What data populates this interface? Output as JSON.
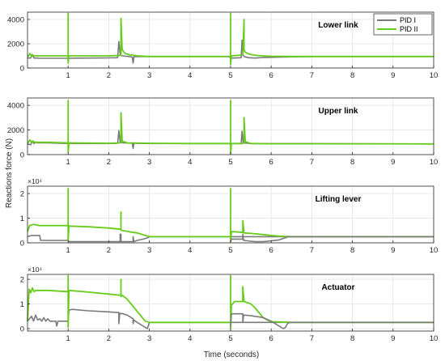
{
  "chart_data": {
    "type": "line",
    "ylabel": "Reactions force (N)",
    "xlabel": "Time (seconds)",
    "xlim": [
      0,
      10
    ],
    "xticks": [
      1,
      2,
      3,
      4,
      5,
      6,
      7,
      8,
      9,
      10
    ],
    "grid": true,
    "legend": {
      "placement": "top-right",
      "entries": [
        {
          "label": "PID I",
          "color": "#7a7a7a"
        },
        {
          "label": "PID II",
          "color": "#66cc1a"
        }
      ]
    },
    "panels": [
      {
        "title": "Lower link",
        "exponent": "",
        "ylim": [
          0,
          4600
        ],
        "yticks": [
          0,
          2000,
          4000
        ],
        "ytick_labels": [
          "0",
          "2000",
          "4000"
        ],
        "series": [
          {
            "name": "PID I",
            "x": [
              0,
              0.08,
              0.12,
              0.16,
              0.22,
              0.3,
              1.0,
              1.2,
              2.0,
              2.22,
              2.25,
              2.28,
              2.33,
              2.5,
              2.58,
              2.6,
              2.62,
              2.65,
              2.75,
              2.9,
              3.0,
              4.0,
              4.97,
              5.0,
              5.05,
              5.2,
              5.26,
              5.28,
              5.31,
              5.35,
              5.45,
              5.6,
              5.8,
              6.0,
              6.3,
              7.0,
              10.0
            ],
            "y": [
              820,
              820,
              1100,
              820,
              820,
              800,
              800,
              810,
              830,
              850,
              2200,
              1100,
              1000,
              950,
              900,
              400,
              920,
              930,
              940,
              950,
              950,
              950,
              950,
              800,
              820,
              840,
              850,
              2300,
              1000,
              920,
              850,
              820,
              860,
              880,
              900,
              950,
              950
            ]
          },
          {
            "name": "PID II",
            "x": [
              0,
              0.06,
              0.1,
              0.14,
              0.18,
              1.0,
              1.0,
              1.0,
              1.02,
              1.5,
              2.0,
              2.3,
              2.3,
              2.33,
              2.4,
              2.5,
              2.6,
              2.7,
              2.8,
              3.0,
              4.0,
              4.97,
              5.0,
              5.0,
              5.0,
              5.02,
              5.2,
              5.3,
              5.33,
              5.33,
              5.36,
              5.45,
              5.6,
              5.8,
              6.0,
              6.5,
              10.0
            ],
            "y": [
              900,
              1200,
              950,
              1050,
              1000,
              1000,
              4500,
              400,
              1000,
              1000,
              1000,
              1050,
              4100,
              1500,
              1200,
              1100,
              1050,
              1000,
              980,
              950,
              950,
              950,
              950,
              4500,
              300,
              1000,
              1050,
              1100,
              4000,
              1500,
              1300,
              1150,
              1050,
              1000,
              970,
              950,
              950
            ]
          }
        ]
      },
      {
        "title": "Upper link",
        "exponent": "",
        "ylim": [
          0,
          4600
        ],
        "yticks": [
          0,
          2000,
          4000
        ],
        "ytick_labels": [
          "0",
          "2000",
          "4000"
        ],
        "series": [
          {
            "name": "PID I",
            "x": [
              0,
              0.08,
              0.12,
              0.16,
              0.2,
              0.25,
              0.3,
              0.35,
              0.4,
              0.45,
              0.5,
              1.0,
              2.0,
              2.22,
              2.25,
              2.28,
              2.35,
              2.58,
              2.6,
              2.62,
              3.0,
              5.0,
              5.26,
              5.28,
              5.31,
              5.5,
              10.0
            ],
            "y": [
              850,
              800,
              1100,
              900,
              1000,
              950,
              950,
              950,
              950,
              950,
              950,
              900,
              900,
              920,
              1950,
              1000,
              950,
              920,
              500,
              920,
              900,
              900,
              900,
              1900,
              950,
              900,
              870
            ]
          },
          {
            "name": "PID II",
            "x": [
              0,
              0.06,
              0.1,
              0.14,
              0.18,
              0.5,
              1.0,
              1.0,
              1.0,
              1.02,
              2.0,
              2.3,
              2.3,
              2.33,
              2.45,
              3.0,
              4.0,
              5.0,
              5.0,
              5.0,
              5.02,
              5.3,
              5.33,
              5.33,
              5.36,
              5.5,
              6.0,
              10.0
            ],
            "y": [
              900,
              1200,
              1000,
              1100,
              1000,
              1000,
              950,
              4400,
              200,
              950,
              920,
              950,
              3400,
              1100,
              950,
              920,
              900,
              900,
              4400,
              100,
              900,
              900,
              950,
              3000,
              1050,
              900,
              880,
              870
            ]
          }
        ]
      },
      {
        "title": "Lifting lever",
        "exponent": "×10⁴",
        "ylim": [
          0,
          2.3
        ],
        "yticks": [
          0,
          1,
          2
        ],
        "ytick_labels": [
          "0",
          "1",
          "2"
        ],
        "series": [
          {
            "name": "PID I",
            "x": [
              0,
              0.1,
              0.3,
              0.32,
              1.0,
              1.02,
              2.0,
              2.28,
              2.28,
              2.3,
              2.3,
              2.6,
              2.6,
              2.62,
              2.7,
              2.85,
              2.95,
              3.0,
              10.0,
              10.0
            ],
            "y": [
              0.25,
              0.3,
              0.3,
              0.1,
              0.1,
              0.05,
              0.05,
              0.05,
              0.35,
              0.35,
              0.05,
              0.05,
              0.25,
              0.05,
              0.1,
              0.15,
              0.2,
              0.25,
              0.25,
              0.25
            ]
          },
          {
            "name": "PID II",
            "x": [
              0,
              0.05,
              0.15,
              0.3,
              0.5,
              1.0,
              1.0,
              1.0,
              1.02,
              1.5,
              2.0,
              2.3,
              2.3,
              2.3,
              2.33,
              2.5,
              2.7,
              2.8,
              2.9,
              3.0,
              4.0,
              5.0,
              5.0,
              5.0,
              5.02,
              5.1,
              5.3,
              5.3,
              5.33,
              5.5,
              5.7,
              5.9,
              6.0,
              6.2,
              6.5,
              10.0
            ],
            "y": [
              0.45,
              0.7,
              0.75,
              0.7,
              0.7,
              0.7,
              2.2,
              0.1,
              0.68,
              0.65,
              0.6,
              0.55,
              1.25,
              0.52,
              0.5,
              0.45,
              0.4,
              0.35,
              0.3,
              0.25,
              0.25,
              0.25,
              2.2,
              0.05,
              0.45,
              0.45,
              0.42,
              0.9,
              0.4,
              0.38,
              0.35,
              0.32,
              0.3,
              0.27,
              0.25,
              0.25
            ]
          },
          {
            "name": "PID I",
            "x": [
              5.0,
              5.02,
              5.3,
              5.3,
              5.32,
              5.6,
              5.8,
              6.0,
              6.2,
              6.3,
              6.35,
              6.4,
              10.0
            ],
            "y": [
              0.05,
              0.15,
              0.15,
              0.35,
              0.1,
              0.05,
              0.05,
              0.08,
              0.12,
              0.18,
              0.2,
              0.25,
              0.25
            ]
          }
        ]
      },
      {
        "title": "Actuator",
        "exponent": "×10⁴",
        "ylim": [
          -0.1,
          2.2
        ],
        "yticks": [
          0,
          1,
          2
        ],
        "ytick_labels": [
          "0",
          "1",
          "2"
        ],
        "series": [
          {
            "name": "PID I",
            "x": [
              0,
              0.1,
              0.15,
              0.2,
              0.25,
              0.3,
              0.35,
              0.4,
              0.45,
              0.5,
              0.55,
              0.6,
              0.7,
              0.72,
              0.75,
              1.0,
              1.02,
              1.1,
              1.5,
              2.0,
              2.25,
              2.25,
              2.27,
              2.35,
              2.45,
              2.5,
              2.55,
              2.6,
              2.6,
              2.62,
              2.7,
              2.8,
              2.9,
              2.95,
              3.0,
              10.0
            ],
            "y": [
              0.3,
              0.5,
              0.3,
              0.55,
              0.35,
              0.4,
              0.3,
              0.45,
              0.3,
              0.4,
              0.3,
              0.3,
              0.3,
              0.1,
              0.3,
              0.3,
              0.75,
              0.78,
              0.72,
              0.68,
              0.65,
              0.2,
              0.62,
              0.6,
              0.55,
              0.5,
              0.45,
              0.4,
              0.2,
              0.35,
              0.25,
              0.15,
              0.05,
              0.0,
              0.25,
              0.25
            ]
          },
          {
            "name": "PID II",
            "x": [
              0,
              0.04,
              0.08,
              0.12,
              0.16,
              0.2,
              0.5,
              1.0,
              1.0,
              1.0,
              1.02,
              1.5,
              2.0,
              2.3,
              2.3,
              2.3,
              2.33,
              2.45,
              2.55,
              2.65,
              2.75,
              2.85,
              2.9,
              3.0,
              4.0,
              5.0,
              5.0,
              5.0,
              5.02,
              5.1,
              5.3,
              5.3,
              5.33,
              5.5,
              5.6,
              5.7,
              5.8,
              5.9,
              6.0,
              6.5,
              10.0
            ],
            "y": [
              0.3,
              1.6,
              1.45,
              1.65,
              1.5,
              1.55,
              1.55,
              1.5,
              2.15,
              0.05,
              1.55,
              1.48,
              1.4,
              1.35,
              2.0,
              1.3,
              1.35,
              1.2,
              1.0,
              0.8,
              0.6,
              0.4,
              0.3,
              0.25,
              0.25,
              0.25,
              2.15,
              0.0,
              0.95,
              1.1,
              1.1,
              1.7,
              1.1,
              1.0,
              0.85,
              0.65,
              0.45,
              0.35,
              0.28,
              0.25,
              0.25
            ]
          },
          {
            "name": "PID I",
            "x": [
              5.0,
              5.02,
              5.3,
              5.3,
              5.32,
              5.5,
              5.8,
              6.0,
              6.1,
              6.2,
              6.3,
              6.35,
              6.4,
              6.45,
              10.0
            ],
            "y": [
              0.05,
              0.6,
              0.6,
              0.25,
              0.55,
              0.52,
              0.45,
              0.3,
              0.2,
              0.1,
              0.0,
              0.05,
              0.2,
              0.25,
              0.25
            ]
          }
        ]
      }
    ]
  }
}
